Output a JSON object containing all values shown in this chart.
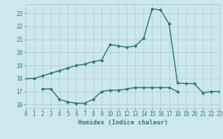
{
  "x": [
    0,
    1,
    2,
    3,
    4,
    5,
    6,
    7,
    8,
    9,
    10,
    11,
    12,
    13,
    14,
    15,
    16,
    17,
    18,
    19,
    20,
    21,
    22,
    23
  ],
  "line1": [
    18.0,
    18.0,
    18.2,
    18.4,
    18.6,
    18.8,
    19.0,
    19.1,
    19.3,
    19.4,
    20.6,
    20.5,
    20.4,
    20.5,
    21.1,
    23.35,
    23.25,
    22.2,
    17.65,
    17.6,
    17.6,
    16.9,
    17.0,
    17.0
  ],
  "line2": [
    null,
    null,
    17.2,
    17.2,
    16.4,
    16.2,
    16.1,
    16.1,
    16.4,
    17.0,
    17.1,
    17.1,
    17.2,
    17.3,
    17.3,
    17.3,
    17.3,
    17.3,
    17.0,
    null,
    null,
    null,
    null,
    null
  ],
  "xlim": [
    0,
    23
  ],
  "ylim": [
    15.7,
    23.7
  ],
  "yticks": [
    16,
    17,
    18,
    19,
    20,
    21,
    22,
    23
  ],
  "xticks": [
    0,
    1,
    2,
    3,
    4,
    5,
    6,
    7,
    8,
    9,
    10,
    11,
    12,
    13,
    14,
    15,
    16,
    17,
    18,
    19,
    20,
    21,
    22,
    23
  ],
  "xlabel": "Humidex (Indice chaleur)",
  "line_color": "#2e7d6e",
  "bg_color": "#cce8ea",
  "grid_color": "#aacccc",
  "marker": "D",
  "markersize": 2.2,
  "linewidth": 1.1
}
